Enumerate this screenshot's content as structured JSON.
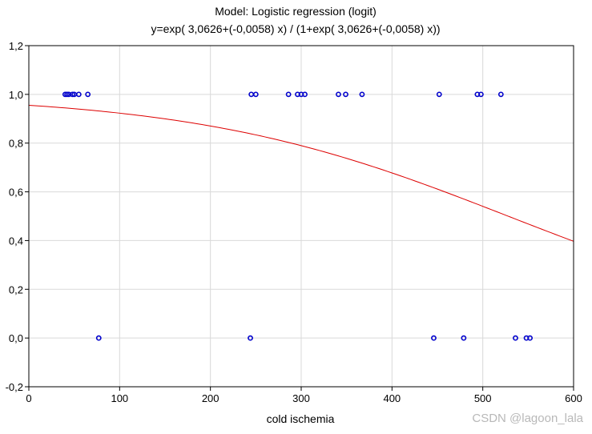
{
  "chart_data": {
    "type": "scatter",
    "title": "Model: Logistic regression (logit)",
    "subtitle": "y=exp( 3,0626+(-0,0058) x) / (1+exp( 3,0626+(-0,0058) x))",
    "xlabel": "cold ischemia",
    "ylabel": "",
    "xlim": [
      0,
      600
    ],
    "ylim": [
      -0.2,
      1.2
    ],
    "x_ticks": [
      0,
      100,
      200,
      300,
      400,
      500,
      600
    ],
    "x_tick_labels": [
      "0",
      "100",
      "200",
      "300",
      "400",
      "500",
      "600"
    ],
    "y_ticks": [
      -0.2,
      0.0,
      0.2,
      0.4,
      0.6,
      0.8,
      1.0,
      1.2
    ],
    "y_tick_labels": [
      "-0,2",
      "0,0",
      "0,2",
      "0,4",
      "0,6",
      "0,8",
      "1,0",
      "1,2"
    ],
    "grid": true,
    "series": [
      {
        "type": "scatter",
        "color": "#0000cc",
        "points": [
          {
            "x": 40,
            "y": 1
          },
          {
            "x": 42,
            "y": 1
          },
          {
            "x": 44,
            "y": 1
          },
          {
            "x": 48,
            "y": 1
          },
          {
            "x": 50,
            "y": 1
          },
          {
            "x": 55,
            "y": 1
          },
          {
            "x": 65,
            "y": 1
          },
          {
            "x": 245,
            "y": 1
          },
          {
            "x": 250,
            "y": 1
          },
          {
            "x": 286,
            "y": 1
          },
          {
            "x": 296,
            "y": 1
          },
          {
            "x": 300,
            "y": 1
          },
          {
            "x": 304,
            "y": 1
          },
          {
            "x": 341,
            "y": 1
          },
          {
            "x": 349,
            "y": 1
          },
          {
            "x": 367,
            "y": 1
          },
          {
            "x": 452,
            "y": 1
          },
          {
            "x": 494,
            "y": 1
          },
          {
            "x": 498,
            "y": 1
          },
          {
            "x": 520,
            "y": 1
          },
          {
            "x": 77,
            "y": 0
          },
          {
            "x": 244,
            "y": 0
          },
          {
            "x": 446,
            "y": 0
          },
          {
            "x": 479,
            "y": 0
          },
          {
            "x": 536,
            "y": 0
          },
          {
            "x": 548,
            "y": 0
          },
          {
            "x": 552,
            "y": 0
          }
        ]
      },
      {
        "type": "line",
        "color": "#dd0000",
        "model": {
          "intercept": 3.0626,
          "slope": -0.0058
        }
      }
    ]
  },
  "watermark": "CSDN @lagoon_lala"
}
